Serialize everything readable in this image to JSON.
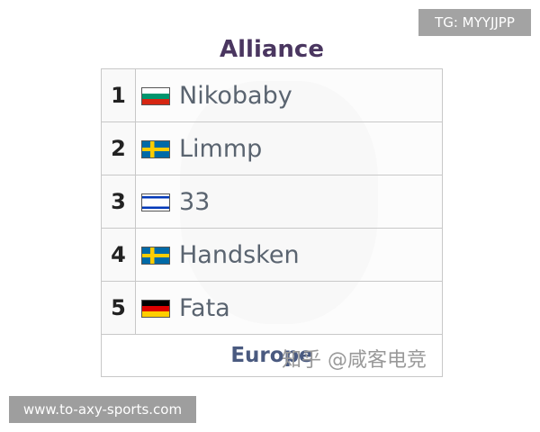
{
  "badges": {
    "top_right": "TG: MYYJJPP",
    "bottom_left": "www.to-axy-sports.com"
  },
  "team": {
    "name": "Alliance",
    "region": "Europe"
  },
  "watermark": "知乎 @咸客电竞",
  "players": [
    {
      "rank": "1",
      "name": "Nikobaby",
      "flag": "bulgaria"
    },
    {
      "rank": "2",
      "name": "Limmp",
      "flag": "sweden"
    },
    {
      "rank": "3",
      "name": "33",
      "flag": "israel"
    },
    {
      "rank": "4",
      "name": "Handsken",
      "flag": "sweden"
    },
    {
      "rank": "5",
      "name": "Fata",
      "flag": "germany"
    }
  ]
}
